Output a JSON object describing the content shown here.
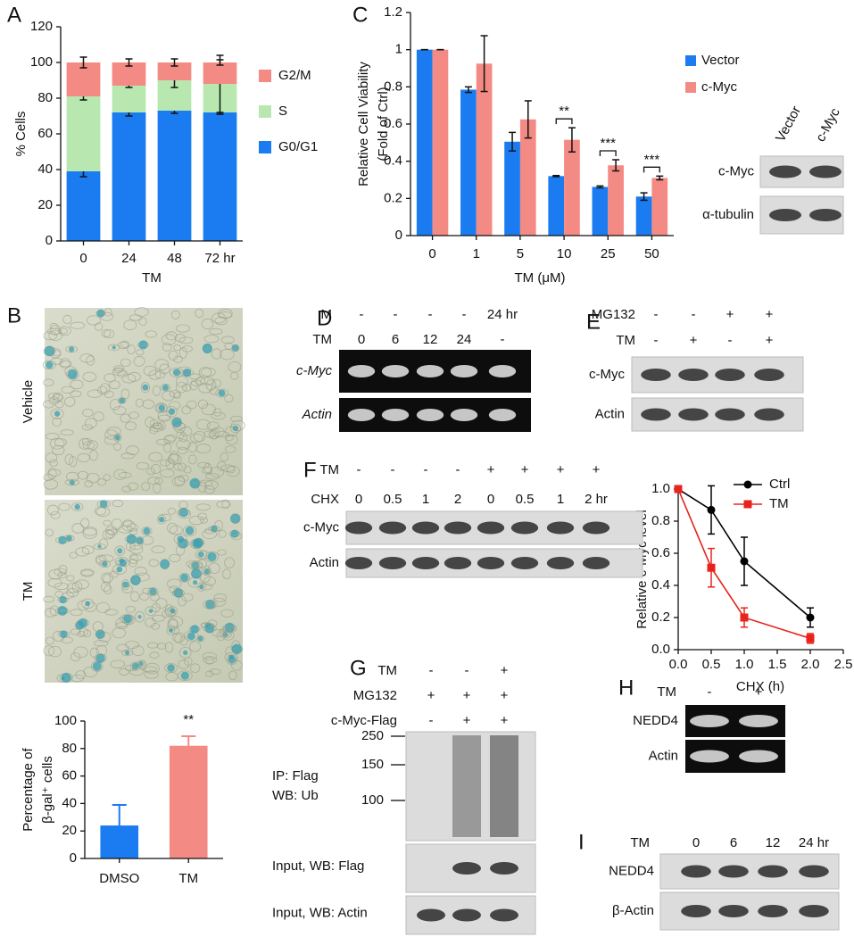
{
  "chart_data": [
    {
      "type": "stacked-bar",
      "panel": "A",
      "ylabel": "% Cells",
      "xlabel": "TM",
      "categories": [
        "0",
        "24",
        "48",
        "72 hr"
      ],
      "series": [
        {
          "name": "G0/G1",
          "color": "#1a7cf0",
          "values": [
            39,
            72,
            73,
            72
          ],
          "errors": [
            3,
            2,
            1.5,
            1
          ]
        },
        {
          "name": "S",
          "color": "#b8e8b0",
          "values": [
            42,
            15,
            17,
            16
          ],
          "errors": [
            2,
            1,
            4,
            16
          ]
        },
        {
          "name": "G2/M",
          "color": "#f48a84",
          "values": [
            19,
            13,
            10,
            12
          ],
          "errors": [
            3,
            2,
            2,
            1.5
          ]
        }
      ],
      "ylim": [
        0,
        120
      ],
      "yticks": [
        0,
        20,
        40,
        60,
        80,
        100,
        120
      ]
    },
    {
      "type": "grouped-bar",
      "panel": "C",
      "ylabel": [
        "Relative Cell Viability",
        "(Fold of Ctrl)"
      ],
      "xlabel": "TM (μM)",
      "categories": [
        "0",
        "1",
        "5",
        "10",
        "25",
        "50"
      ],
      "series": [
        {
          "name": "Vector",
          "color": "#1a7cf0",
          "values": [
            1,
            0.785,
            0.505,
            0.32,
            0.262,
            0.21
          ],
          "errors": [
            0,
            0.015,
            0.05,
            0.003,
            0.005,
            0.02
          ]
        },
        {
          "name": "c-Myc",
          "color": "#f48a84",
          "values": [
            1,
            0.925,
            0.625,
            0.515,
            0.378,
            0.31
          ],
          "errors": [
            0,
            0.15,
            0.1,
            0.065,
            0.03,
            0.01
          ]
        }
      ],
      "annotations": [
        "**",
        "***",
        "***"
      ],
      "ylim": [
        0,
        1.2
      ],
      "yticks": [
        0,
        0.2,
        0.4,
        0.6,
        0.8,
        1,
        1.2
      ]
    },
    {
      "type": "bar",
      "ylabel": [
        "Percentage of",
        "β-gal⁺ cells"
      ],
      "categories": [
        "DMSO",
        "TM"
      ],
      "values": [
        24,
        82
      ],
      "errors": [
        15,
        7
      ],
      "colors": [
        "#1a7cf0",
        "#f48a84"
      ],
      "annotations": [
        "**"
      ],
      "ylim": [
        0,
        100
      ],
      "yticks": [
        0,
        20,
        40,
        60,
        80,
        100
      ]
    },
    {
      "type": "line",
      "xlabel": "CHX (h)",
      "ylabel": "Relative c-Myc level",
      "x": [
        0,
        0.5,
        1,
        2
      ],
      "series": [
        {
          "name": "Ctrl",
          "color": "#000000",
          "values": [
            1,
            0.87,
            0.55,
            0.2
          ],
          "errors": [
            0,
            0.15,
            0.15,
            0.06
          ]
        },
        {
          "name": "TM",
          "color": "#e8231b",
          "values": [
            1,
            0.51,
            0.2,
            0.07
          ],
          "errors": [
            0,
            0.12,
            0.06,
            0.03
          ]
        }
      ],
      "xlim": [
        0,
        2.5
      ],
      "xticks": [
        {
          "value": 0,
          "label": "0.0"
        },
        0.5,
        {
          "value": 1,
          "label": "1.0"
        },
        1.5,
        {
          "value": 2,
          "label": "2.0"
        },
        2.5
      ],
      "ylim": [
        0,
        1
      ],
      "yticks": [
        {
          "value": 0,
          "label": "0.0"
        },
        0.2,
        0.4,
        0.6,
        0.8,
        {
          "value": 1,
          "label": "1.0"
        }
      ]
    }
  ],
  "images": {
    "panel": "B",
    "labels": [
      "Vehicle",
      "TM"
    ]
  },
  "blots": [
    {
      "columns": [
        "Vector",
        "c-Myc"
      ],
      "bands": [
        "c-Myc",
        "α-tubulin"
      ]
    },
    {
      "panel": "D",
      "conditions": [
        {
          "label": "M",
          "values": [
            "-",
            "-",
            "-",
            "-",
            "24 hr"
          ]
        },
        {
          "label": "TM",
          "values": [
            "0",
            "6",
            "12",
            "24",
            "-"
          ]
        }
      ],
      "bands": [
        "c-Myc",
        "Actin"
      ]
    },
    {
      "panel": "E",
      "conditions": [
        {
          "label": "MG132",
          "values": [
            "-",
            "-",
            "+",
            "+"
          ]
        },
        {
          "label": "TM",
          "values": [
            "-",
            "+",
            "-",
            "+"
          ]
        }
      ],
      "bands": [
        "c-Myc",
        "Actin"
      ]
    },
    {
      "panel": "F",
      "conditions": [
        {
          "label": "TM",
          "values": [
            "-",
            "-",
            "-",
            "-",
            "+",
            "+",
            "+",
            "+"
          ]
        },
        {
          "label": "CHX",
          "values": [
            "0",
            "0.5",
            "1",
            "2",
            "0",
            "0.5",
            "1",
            "2 hr"
          ]
        }
      ],
      "bands": [
        "c-Myc",
        "Actin"
      ]
    },
    {
      "panel": "G",
      "conditions": [
        {
          "label": "TM",
          "values": [
            "-",
            "-",
            "+"
          ]
        },
        {
          "label": "MG132",
          "values": [
            "+",
            "+",
            "+"
          ]
        },
        {
          "label": "c-Myc-Flag",
          "values": [
            "-",
            "+",
            "+"
          ]
        }
      ],
      "markers": [
        "250",
        "150",
        "100"
      ],
      "bands": [
        [
          "IP: Flag",
          "WB: Ub"
        ],
        "Input, WB: Flag",
        "Input, WB: Actin"
      ]
    },
    {
      "panel": "H",
      "conditions": [
        {
          "label": "TM",
          "values": [
            "-",
            "+"
          ]
        }
      ],
      "bands": [
        "NEDD4",
        "Actin"
      ]
    },
    {
      "panel": "I",
      "conditions": [
        {
          "label": "TM",
          "values": [
            "0",
            "6",
            "12",
            "24 hr"
          ]
        }
      ],
      "bands": [
        "NEDD4",
        "β-Actin"
      ]
    }
  ]
}
